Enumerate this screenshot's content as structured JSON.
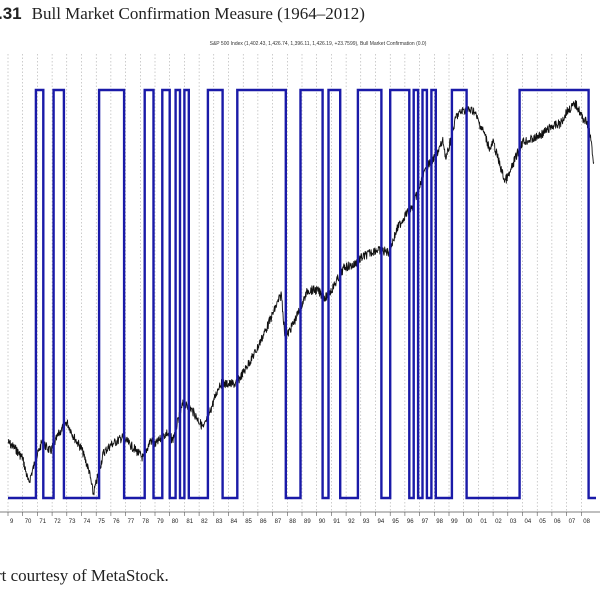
{
  "figure": {
    "number": ".31",
    "title": "Bull Market Confirmation Measure (1964–2012)",
    "caption": "rt courtesy of MetaStock."
  },
  "colors": {
    "confirmation": "#1a1aa8",
    "price": "#111111",
    "grid": "#9a9a9a"
  },
  "chart_data": [
    {
      "type": "line",
      "header": "S&P 500 Index (1,402.43, 1,426.74, 1,396.11, 1,426.19, +23.7599), Bull Market Confirmation (0.0)",
      "x_ticks": [
        "9",
        "70",
        "71",
        "72",
        "73",
        "74",
        "75",
        "76",
        "77",
        "78",
        "79",
        "80",
        "81",
        "82",
        "83",
        "84",
        "85",
        "86",
        "87",
        "88",
        "89",
        "90",
        "91",
        "92",
        "93",
        "94",
        "95",
        "96",
        "97",
        "98",
        "99",
        "00",
        "01",
        "02",
        "03",
        "04",
        "05",
        "06",
        "07",
        "08"
      ],
      "xlim": [
        1969.0,
        2009.0
      ],
      "log_scale": true,
      "grid_vertical": true,
      "series": [
        {
          "kind": "price",
          "points": [
            [
              1969.0,
              100
            ],
            [
              1969.5,
              95
            ],
            [
              1970.0,
              88
            ],
            [
              1970.4,
              72
            ],
            [
              1970.8,
              84
            ],
            [
              1971.3,
              100
            ],
            [
              1971.9,
              93
            ],
            [
              1972.5,
              108
            ],
            [
              1973.0,
              118
            ],
            [
              1973.5,
              104
            ],
            [
              1974.0,
              95
            ],
            [
              1974.5,
              80
            ],
            [
              1974.8,
              66
            ],
            [
              1975.0,
              72
            ],
            [
              1975.5,
              92
            ],
            [
              1976.0,
              98
            ],
            [
              1976.8,
              104
            ],
            [
              1977.5,
              96
            ],
            [
              1978.2,
              88
            ],
            [
              1978.7,
              102
            ],
            [
              1979.0,
              98
            ],
            [
              1979.8,
              108
            ],
            [
              1980.2,
              102
            ],
            [
              1980.9,
              136
            ],
            [
              1981.5,
              130
            ],
            [
              1982.3,
              112
            ],
            [
              1982.7,
              126
            ],
            [
              1983.4,
              160
            ],
            [
              1984.5,
              160
            ],
            [
              1985.0,
              175
            ],
            [
              1985.9,
              210
            ],
            [
              1986.5,
              245
            ],
            [
              1987.0,
              280
            ],
            [
              1987.6,
              330
            ],
            [
              1987.85,
              230
            ],
            [
              1988.5,
              265
            ],
            [
              1989.4,
              340
            ],
            [
              1990.0,
              340
            ],
            [
              1990.6,
              320
            ],
            [
              1991.0,
              340
            ],
            [
              1991.9,
              410
            ],
            [
              1992.5,
              415
            ],
            [
              1993.0,
              440
            ],
            [
              1994.0,
              470
            ],
            [
              1994.9,
              462
            ],
            [
              1995.5,
              560
            ],
            [
              1996.0,
              620
            ],
            [
              1996.5,
              660
            ],
            [
              1997.0,
              780
            ],
            [
              1997.5,
              920
            ],
            [
              1998.0,
              980
            ],
            [
              1998.6,
              1130
            ],
            [
              1998.8,
              970
            ],
            [
              1999.5,
              1380
            ],
            [
              2000.0,
              1450
            ],
            [
              2000.7,
              1440
            ],
            [
              2001.0,
              1320
            ],
            [
              2001.4,
              1200
            ],
            [
              2001.8,
              1050
            ],
            [
              2002.0,
              1120
            ],
            [
              2002.6,
              880
            ],
            [
              2002.8,
              820
            ],
            [
              2003.1,
              860
            ],
            [
              2003.5,
              980
            ],
            [
              2004.0,
              1120
            ],
            [
              2004.8,
              1150
            ],
            [
              2005.5,
              1210
            ],
            [
              2006.0,
              1270
            ],
            [
              2006.6,
              1300
            ],
            [
              2007.0,
              1430
            ],
            [
              2007.6,
              1520
            ],
            [
              2007.8,
              1470
            ],
            [
              2008.0,
              1380
            ],
            [
              2008.5,
              1280
            ],
            [
              2008.85,
              950
            ]
          ]
        },
        {
          "kind": "confirmation",
          "values": [
            0,
            1
          ],
          "on_intervals": [
            [
              1970.9,
              1971.4
            ],
            [
              1972.1,
              1972.8
            ],
            [
              1975.2,
              1976.9
            ],
            [
              1978.3,
              1978.9
            ],
            [
              1979.5,
              1980.0
            ],
            [
              1980.4,
              1980.7
            ],
            [
              1981.0,
              1981.3
            ],
            [
              1982.6,
              1983.6
            ],
            [
              1984.6,
              1987.9
            ],
            [
              1988.9,
              1990.4
            ],
            [
              1990.8,
              1991.6
            ],
            [
              1992.8,
              1994.4
            ],
            [
              1995.0,
              1996.3
            ],
            [
              1996.6,
              1996.9
            ],
            [
              1997.2,
              1997.5
            ],
            [
              1997.8,
              1998.1
            ],
            [
              1999.2,
              2000.2
            ],
            [
              2003.8,
              2008.5
            ]
          ]
        }
      ]
    }
  ]
}
